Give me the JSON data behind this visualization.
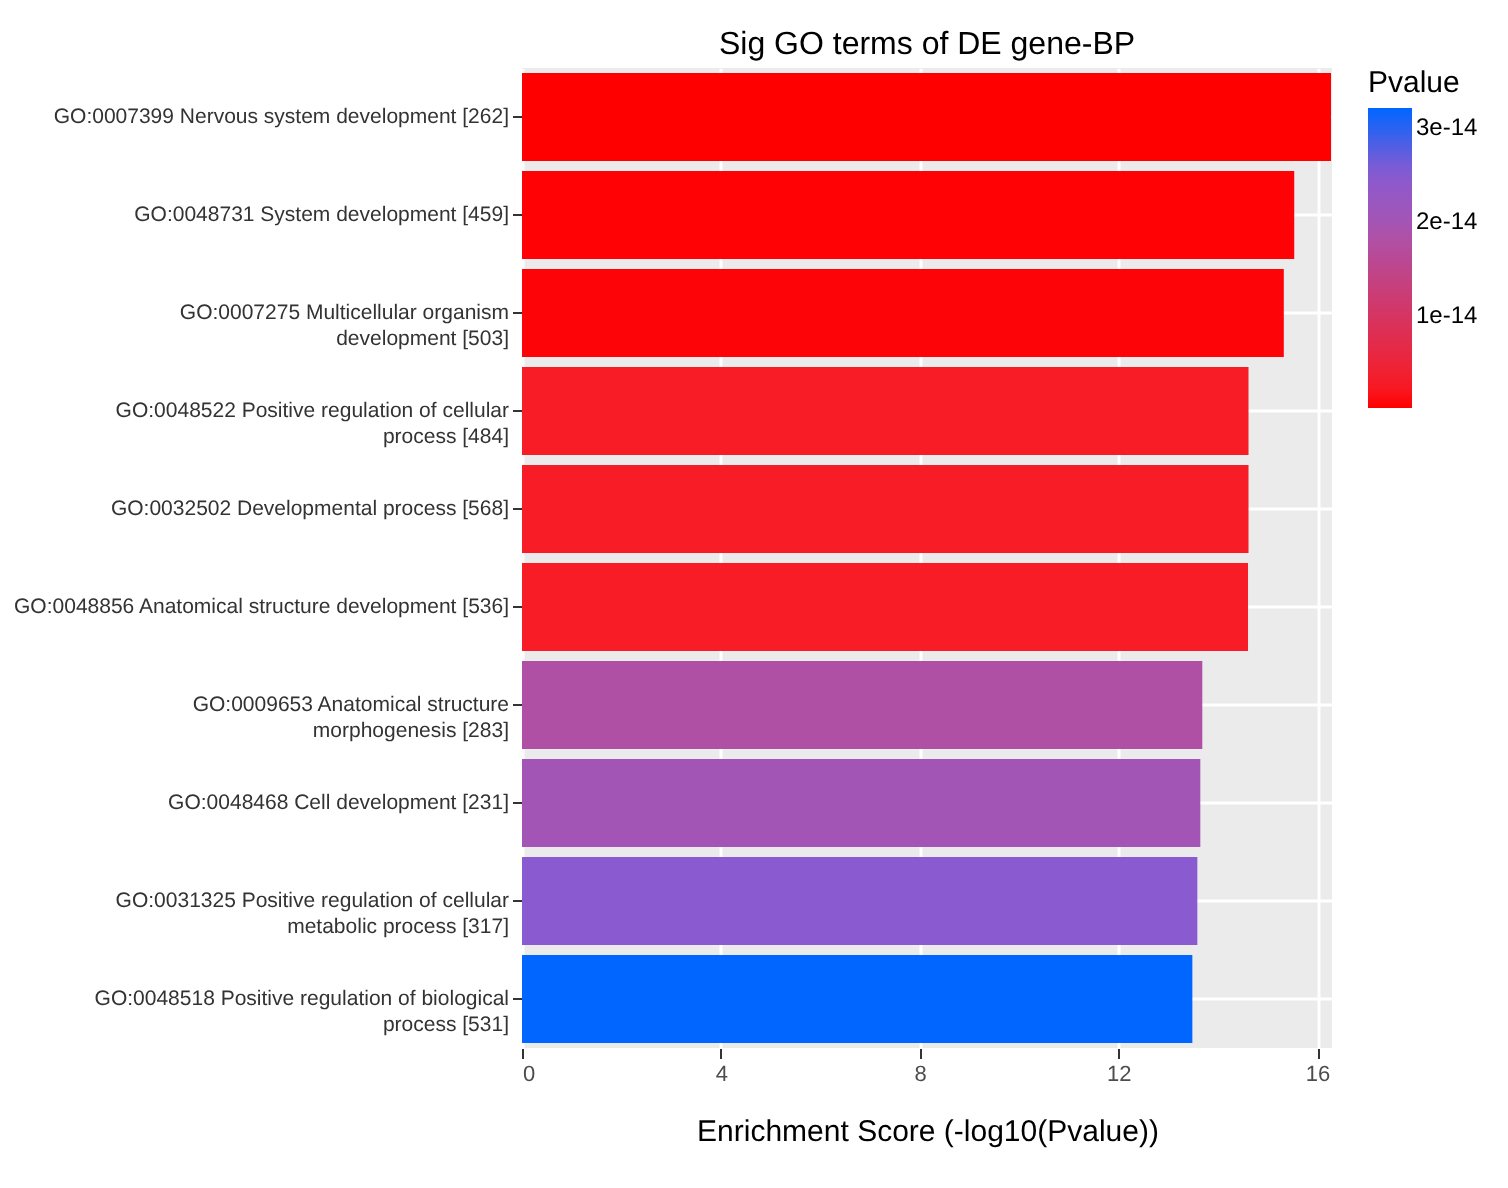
{
  "chart_data": {
    "type": "bar",
    "orientation": "horizontal",
    "title": "Sig GO terms of DE gene-BP",
    "xlabel": "Enrichment Score (-log10(Pvalue))",
    "legend_title": "Pvalue",
    "categories": [
      "GO:0007399 Nervous system development [262]",
      "GO:0048731 System development [459]",
      "GO:0007275 Multicellular organism\ndevelopment [503]",
      "GO:0048522 Positive regulation of cellular\nprocess [484]",
      "GO:0032502 Developmental process [568]",
      "GO:0048856 Anatomical structure development [536]",
      "GO:0009653 Anatomical structure\nmorphogenesis [283]",
      "GO:0048468 Cell development [231]",
      "GO:0031325 Positive regulation of cellular\nmetabolic process [317]",
      "GO:0048518 Positive regulation of biological\nprocess [531]"
    ],
    "values": [
      16.28,
      15.54,
      15.33,
      14.62,
      14.62,
      14.61,
      13.69,
      13.65,
      13.59,
      13.49
    ],
    "cvalues": [
      5e-17,
      2.9e-16,
      4.7e-16,
      2.4e-15,
      2.4e-15,
      2.5e-15,
      1.8e-14,
      2e-14,
      2.5e-14,
      3.2e-14
    ],
    "clim": [
      5e-17,
      3.2e-14
    ],
    "cticks": [
      {
        "value": 1e-14,
        "label": "1e-14"
      },
      {
        "value": 2e-14,
        "label": "2e-14"
      },
      {
        "value": 3e-14,
        "label": "3e-14"
      }
    ],
    "colors": [
      "#ff0000",
      "#fe0206",
      "#fd0409",
      "#f71c26",
      "#f71c26",
      "#f71c26",
      "#b050a5",
      "#a355b5",
      "#8a5ad0",
      "#0066ff"
    ],
    "xlim": [
      0,
      16.3
    ],
    "xticks": [
      0,
      4,
      8,
      12,
      16
    ],
    "grid": true
  }
}
